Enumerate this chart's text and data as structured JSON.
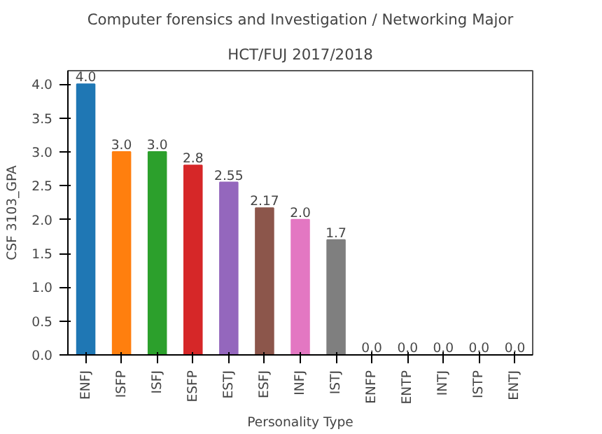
{
  "chart_data": {
    "type": "bar",
    "title": "Computer forensics and Investigation / Networking Major",
    "subtitle": "HCT/FUJ 2017/2018",
    "xlabel": "Personality Type",
    "ylabel": "CSF 3103_GPA",
    "categories": [
      "ENFJ",
      "ISFP",
      "ISFJ",
      "ESFP",
      "ESTJ",
      "ESFJ",
      "INFJ",
      "ISTJ",
      "ENFP",
      "ENTP",
      "INTJ",
      "ISTP",
      "ENTJ"
    ],
    "values": [
      4.0,
      3.0,
      3.0,
      2.8,
      2.55,
      2.17,
      2.0,
      1.7,
      0,
      0,
      0,
      0,
      0
    ],
    "colors": [
      "#1f77b4",
      "#ff7f0e",
      "#2ca02c",
      "#d62728",
      "#9467bd",
      "#8c564b",
      "#e377c2",
      "#7f7f7f",
      "#bcbd22",
      "#17becf",
      "#1f77b4",
      "#ff7f0e",
      "#2ca02c"
    ],
    "value_labels": [
      "4.0",
      "3.0",
      "3.0",
      "2.8",
      "2.55",
      "2.17",
      "2.0",
      "1.7",
      "0.0",
      "0.0",
      "0.0",
      "0.0",
      "0.0"
    ],
    "ylim": [
      0,
      4.2
    ],
    "yticks": [
      {
        "value": 0,
        "label": "0.0"
      },
      {
        "value": 0.5,
        "label": "0.5"
      },
      {
        "value": 1,
        "label": "1.0"
      },
      {
        "value": 1.5,
        "label": "1.5"
      },
      {
        "value": 2,
        "label": "2.0"
      },
      {
        "value": 2.5,
        "label": "2.5"
      },
      {
        "value": 3,
        "label": "3.0"
      },
      {
        "value": 3.5,
        "label": "3.5"
      },
      {
        "value": 4,
        "label": "4.0"
      }
    ],
    "grid": false
  }
}
